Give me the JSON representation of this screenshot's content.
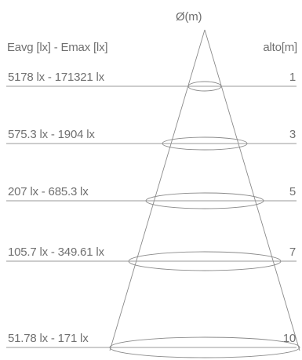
{
  "header": {
    "diameter_label": "Ø(m)",
    "left_label": "Eavg [lx] - Emax [lx]",
    "right_label": "alto[m]"
  },
  "rows": [
    {
      "illuminance": "5178 lx - 171321 lx",
      "height": "1"
    },
    {
      "illuminance": "575.3 lx - 1904 lx",
      "height": "3"
    },
    {
      "illuminance": "207 lx - 685.3 lx",
      "height": "5"
    },
    {
      "illuminance": "105.7 lx - 349.61 lx",
      "height": "7"
    },
    {
      "illuminance": "51.78 lx - 171  lx",
      "height": "10"
    }
  ],
  "colors": {
    "line": "#8a8a8a",
    "text": "#707070"
  }
}
